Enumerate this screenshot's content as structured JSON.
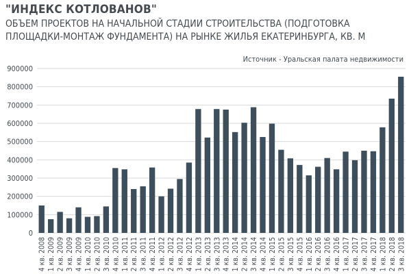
{
  "header": {
    "title": "\"ИНДЕКС КОТЛОВАНОВ\"",
    "subtitle_line1": "ОБЪЕМ ПРОЕКТОВ НА НАЧАЛЬНОЙ СТАДИИ СТРОИТЕЛЬСТВА (ПОДГОТОВКА",
    "subtitle_line2": "ПЛОЩАДКИ-МОНТАЖ ФУНДАМЕНТА) НА РЫНКЕ ЖИЛЬЯ ЕКАТЕРИНБУРГА, КВ. М",
    "source": "Источник - Уральская палата недвижимости"
  },
  "colors": {
    "bar": "#3d4f5c",
    "text": "#444a4f",
    "grid": "#d9d9d9"
  },
  "chart_data": {
    "type": "bar",
    "title": "\"ИНДЕКС КОТЛОВАНОВ\"",
    "xlabel": "",
    "ylabel": "",
    "ylim": [
      0,
      900000
    ],
    "yticks": [
      0,
      100000,
      200000,
      300000,
      400000,
      500000,
      600000,
      700000,
      800000,
      900000
    ],
    "grid": true,
    "legend": "none",
    "categories": [
      "4 кв. 2008",
      "1 кв. 2009",
      "2 кв. 2009",
      "3 кв. 2009",
      "4 кв. 2009",
      "1 кв. 2010",
      "2 кв. 2010",
      "3 кв. 2010",
      "4 кв. 2010",
      "1 кв. 2011",
      "2 кв. 2011",
      "3 кв. 2011",
      "4 кв. 2011",
      "1 кв. 2012",
      "2 кв. 2012",
      "3 кв. 2012",
      "4 кв. 2012",
      "1 кв. 2013",
      "2 кв. 2013",
      "3 кв. 2013",
      "4 кв. 2013",
      "1 кв. 2014",
      "2 кв. 2014",
      "3 кв. 2014",
      "4 кв. 2014",
      "1 кв. 2015",
      "2 кв. 2015",
      "3 кв. 2015",
      "4 кв. 2015",
      "1 кв. 2016",
      "2 кв. 2016",
      "3 кв. 2016",
      "4 кв. 2016",
      "1 кв. 2017",
      "2 кв. 2017",
      "3 кв. 2017",
      "4 кв. 2017",
      "1 кв. 2018",
      "2 кв. 2018",
      "3 кв. 2018"
    ],
    "values": [
      150000,
      75000,
      115000,
      80000,
      140000,
      88000,
      92000,
      145000,
      355000,
      348000,
      240000,
      255000,
      358000,
      200000,
      242000,
      295000,
      385000,
      678000,
      522000,
      678000,
      675000,
      552000,
      603000,
      688000,
      525000,
      598000,
      455000,
      408000,
      372000,
      315000,
      362000,
      410000,
      348000,
      445000,
      398000,
      450000,
      447000,
      578000,
      735000,
      855000
    ]
  }
}
